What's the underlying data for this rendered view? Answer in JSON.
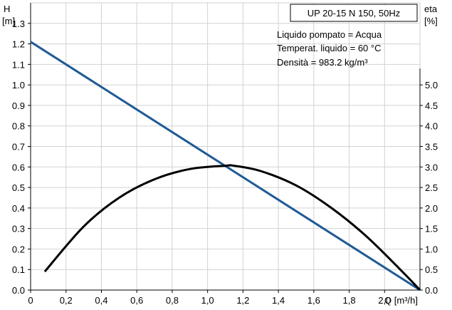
{
  "chart_data": {
    "type": "line",
    "title": "UP 20-15 N 150, 50Hz",
    "annotations": [
      "Liquido pompato = Acqua",
      "Temperat. liquido = 60 °C",
      "Densità = 983.2 kg/m³"
    ],
    "xlabel": "Q [m³/h]",
    "ylabel_left": [
      "H",
      "[m]"
    ],
    "ylabel_right": [
      "eta",
      "[%]"
    ],
    "xlim": [
      0,
      2.2
    ],
    "ylim_left": [
      0,
      1.4
    ],
    "ylim_right": [
      0,
      7.0
    ],
    "x_ticks": [
      "0",
      "0,2",
      "0,4",
      "0,6",
      "0,8",
      "1,0",
      "1,2",
      "1,4",
      "1,6",
      "1,8",
      "2,0"
    ],
    "y_left_ticks": [
      "0.0",
      "0.1",
      "0.2",
      "0.3",
      "0.4",
      "0.5",
      "0.6",
      "0.7",
      "0.8",
      "0.9",
      "1.0",
      "1.1",
      "1.2",
      "1.3"
    ],
    "y_right_ticks": [
      "0.0",
      "0.5",
      "1.0",
      "1.5",
      "2.0",
      "2.5",
      "3.0",
      "3.5",
      "4.0",
      "4.5",
      "5.0"
    ],
    "grid": true,
    "series": [
      {
        "axis": "left",
        "color": "#1f5a96",
        "x": [
          0,
          2.2
        ],
        "y": [
          1.21,
          0
        ]
      },
      {
        "axis": "right",
        "color": "#000000",
        "x": [
          0.08,
          0.3,
          0.5,
          0.7,
          0.9,
          1.1,
          1.15,
          1.3,
          1.5,
          1.7,
          1.9,
          2.1,
          2.2
        ],
        "y": [
          0.45,
          1.55,
          2.25,
          2.7,
          2.95,
          3.03,
          3.03,
          2.9,
          2.55,
          2.0,
          1.3,
          0.45,
          0.0
        ]
      }
    ]
  }
}
